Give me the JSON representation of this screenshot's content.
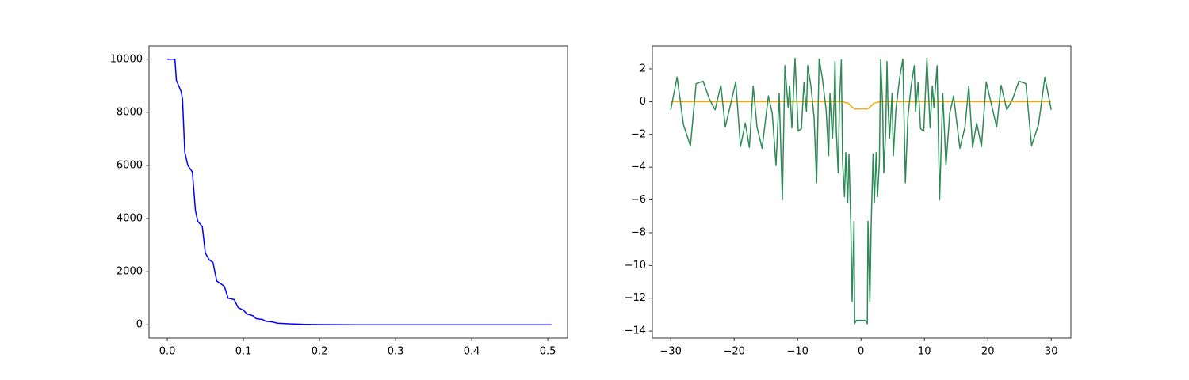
{
  "chart_data": [
    {
      "type": "line",
      "series": [
        {
          "color": "#0000ff",
          "x": [
            0.0,
            0.01,
            0.012,
            0.018,
            0.02,
            0.023,
            0.027,
            0.033,
            0.037,
            0.04,
            0.046,
            0.05,
            0.055,
            0.06,
            0.065,
            0.07,
            0.075,
            0.08,
            0.088,
            0.093,
            0.1,
            0.105,
            0.112,
            0.117,
            0.125,
            0.13,
            0.137,
            0.145,
            0.16,
            0.18,
            0.2,
            0.25,
            0.3,
            0.4,
            0.505
          ],
          "values": [
            10000,
            10000,
            9200,
            8800,
            8500,
            6500,
            6000,
            5750,
            4300,
            3900,
            3700,
            2700,
            2450,
            2350,
            1650,
            1550,
            1450,
            1000,
            950,
            650,
            550,
            400,
            350,
            230,
            200,
            130,
            110,
            60,
            35,
            15,
            5,
            1,
            0,
            0,
            0
          ]
        }
      ],
      "xlim": [
        -0.024,
        0.526
      ],
      "xticks": [
        {
          "value": 0.0,
          "label": "0.0"
        },
        0.1,
        0.2,
        0.3,
        0.4,
        0.5
      ],
      "ylim": [
        -500,
        10500
      ],
      "yticks": [
        0,
        2000,
        4000,
        6000,
        8000,
        10000
      ]
    },
    {
      "type": "line",
      "series": [
        {
          "color": "#ffa500",
          "x": [
            -30,
            -3,
            -2,
            -1.5,
            -1,
            1,
            1.5,
            2,
            3,
            30
          ],
          "values": [
            0,
            0,
            -0.1,
            -0.3,
            -0.45,
            -0.45,
            -0.3,
            -0.1,
            0,
            0
          ]
        },
        {
          "color": "#2e8b57",
          "x": [
            -30,
            -29,
            -28,
            -26.9,
            -26,
            -24.9,
            -23.9,
            -23,
            -22.1,
            -21.4,
            -19.75,
            -19,
            -18.25,
            -17.6,
            -17,
            -16.4,
            -15.6,
            -14.6,
            -14,
            -13.4,
            -12.9,
            -12.4,
            -12,
            -11.5,
            -11.25,
            -10.9,
            -10.4,
            -9.9,
            -9.4,
            -9,
            -8.6,
            -8.4,
            -7.9,
            -7.4,
            -7,
            -6.6,
            -6.1,
            -5.5,
            -5.1,
            -4.9,
            -4.5,
            -4.25,
            -4.1,
            -3.9,
            -3.6,
            -3.4,
            -3.1,
            -2.9,
            -2.6,
            -2.4,
            -2.1,
            -1.9,
            -1.6,
            -1.4,
            -1.1,
            -1,
            -0.75,
            0.75,
            1,
            1.1,
            1.4,
            1.6,
            1.9,
            2.1,
            2.4,
            2.6,
            2.9,
            3.1,
            3.4,
            3.6,
            3.9,
            4.1,
            4.25,
            4.5,
            4.9,
            5.1,
            5.5,
            6.1,
            6.6,
            7,
            7.4,
            7.9,
            8.4,
            8.6,
            9,
            9.4,
            9.9,
            10.4,
            10.9,
            11.25,
            11.5,
            12,
            12.4,
            12.9,
            13.4,
            14,
            14.6,
            15.6,
            16.4,
            17,
            17.6,
            18.25,
            19,
            19.75,
            21.4,
            22.1,
            23,
            23.9,
            24.9,
            26,
            26.9,
            28,
            29,
            30
          ],
          "values": [
            -0.5,
            1.5,
            -1.4,
            -2.7,
            1.1,
            1.25,
            0.15,
            -0.5,
            1.0,
            -1.55,
            1.2,
            -2.75,
            -1.3,
            -2.8,
            0.95,
            -1.55,
            -2.85,
            0.35,
            -0.7,
            -3.9,
            0.5,
            -6.0,
            2.2,
            -0.35,
            0.95,
            -1.6,
            2.65,
            -1.8,
            -1.65,
            1.15,
            -0.6,
            2.2,
            0.95,
            -0.95,
            -4.95,
            2.6,
            1.45,
            -0.5,
            -3.3,
            0.5,
            -2.25,
            -0.1,
            2.45,
            -1.7,
            -4.35,
            -0.1,
            2.55,
            -3.7,
            -5.8,
            -3.1,
            -6.15,
            -3.2,
            -7.6,
            -12.2,
            -7.3,
            -13.55,
            -13.35,
            -13.35,
            -13.55,
            -7.3,
            -12.2,
            -7.6,
            -3.2,
            -6.15,
            -3.1,
            -5.8,
            -3.7,
            2.55,
            -0.1,
            -4.35,
            -1.7,
            2.45,
            -0.1,
            -2.25,
            0.5,
            -3.3,
            -0.5,
            1.45,
            2.6,
            -4.95,
            -0.95,
            0.95,
            2.2,
            -0.6,
            1.15,
            -1.65,
            -1.8,
            2.65,
            -1.6,
            0.95,
            -0.35,
            2.2,
            -6.0,
            0.5,
            -3.9,
            -0.7,
            0.35,
            -2.85,
            -1.55,
            0.95,
            -2.8,
            -1.3,
            -2.75,
            1.2,
            -1.55,
            1.0,
            -0.5,
            0.15,
            1.25,
            1.1,
            -2.7,
            -1.4,
            1.5,
            -0.5
          ]
        }
      ],
      "xlim": [
        -32.9,
        33.1
      ],
      "xticks": [
        {
          "value": -30,
          "label": "−30"
        },
        {
          "value": -20,
          "label": "−20"
        },
        {
          "value": -10,
          "label": "−10"
        },
        0,
        10,
        20,
        30
      ],
      "ylim": [
        -14.43,
        3.4
      ],
      "yticks": [
        {
          "value": -14,
          "label": "−14"
        },
        {
          "value": -12,
          "label": "−12"
        },
        {
          "value": -10,
          "label": "−10"
        },
        {
          "value": -8,
          "label": "−8"
        },
        {
          "value": -6,
          "label": "−6"
        },
        {
          "value": -4,
          "label": "−4"
        },
        {
          "value": -2,
          "label": "−2"
        },
        0,
        2
      ]
    }
  ]
}
